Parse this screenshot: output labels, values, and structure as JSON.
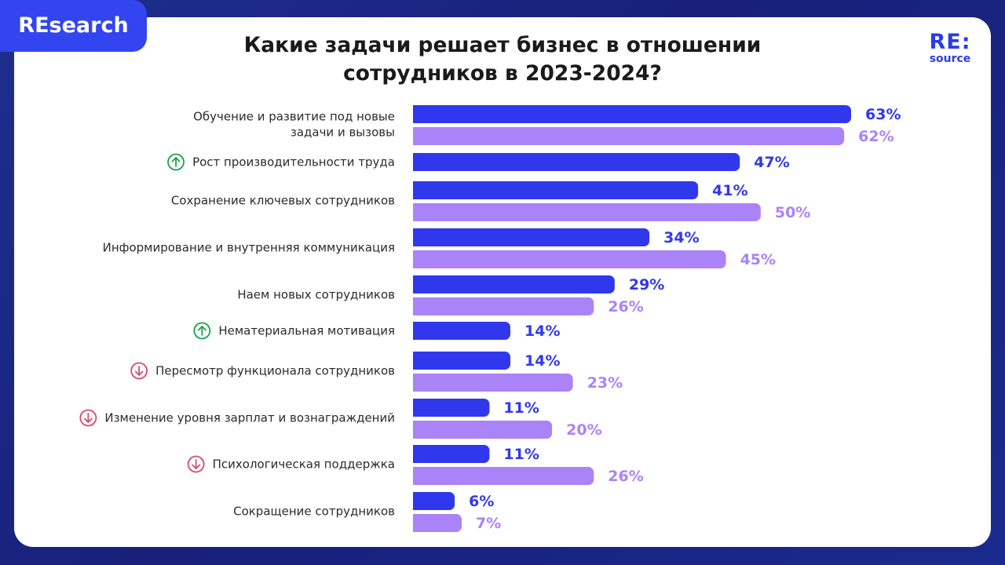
{
  "badge": "REsearch",
  "logo": {
    "line1": "RE:",
    "line2": "source"
  },
  "title_line1": "Какие задачи решает бизнес в отношении",
  "title_line2": "сотрудников в 2023-2024?",
  "colors": {
    "series1": "#3038ee",
    "series2": "#ab83f8",
    "up": "#1aa34a",
    "down": "#d94a6e"
  },
  "chart_data": {
    "type": "bar",
    "orientation": "horizontal",
    "title": "Какие задачи решает бизнес в отношении сотрудников в 2023-2024?",
    "xlim": [
      0,
      63
    ],
    "grid": false,
    "legend": "none",
    "categories": [
      "Обучение и развитие под новые задачи и вызовы",
      "Рост производительности труда",
      "Сохранение ключевых сотрудников",
      "Информирование и внутренняя коммуникация",
      "Наем новых сотрудников",
      "Нематериальная мотивация",
      "Пересмотр функционала сотрудников",
      "Изменение уровня зарплат и вознаграждений",
      "Психологическая поддержка",
      "Сокращение сотрудников"
    ],
    "category_lines": [
      [
        "Обучение и развитие под новые",
        "задачи и вызовы"
      ],
      [
        "Рост производительности труда"
      ],
      [
        "Сохранение ключевых сотрудников"
      ],
      [
        "Информирование и внутренняя коммуникация"
      ],
      [
        "Наем новых сотрудников"
      ],
      [
        "Нематериальная мотивация"
      ],
      [
        "Пересмотр функционала сотрудников"
      ],
      [
        "Изменение уровня зарплат и вознаграждений"
      ],
      [
        "Психологическая поддержка"
      ],
      [
        "Сокращение сотрудников"
      ]
    ],
    "trend_icons": [
      "",
      "up",
      "",
      "",
      "",
      "up",
      "down",
      "down",
      "down",
      ""
    ],
    "series": [
      {
        "values": [
          63,
          47,
          41,
          34,
          29,
          14,
          14,
          11,
          11,
          6
        ],
        "labels": [
          "63%",
          "47%",
          "41%",
          "34%",
          "29%",
          "14%",
          "14%",
          "11%",
          "11%",
          "6%"
        ]
      },
      {
        "values": [
          62,
          null,
          50,
          45,
          26,
          null,
          23,
          20,
          26,
          7
        ],
        "labels": [
          "62%",
          "",
          "50%",
          "45%",
          "26%",
          "",
          "23%",
          "20%",
          "26%",
          "7%"
        ]
      }
    ]
  }
}
